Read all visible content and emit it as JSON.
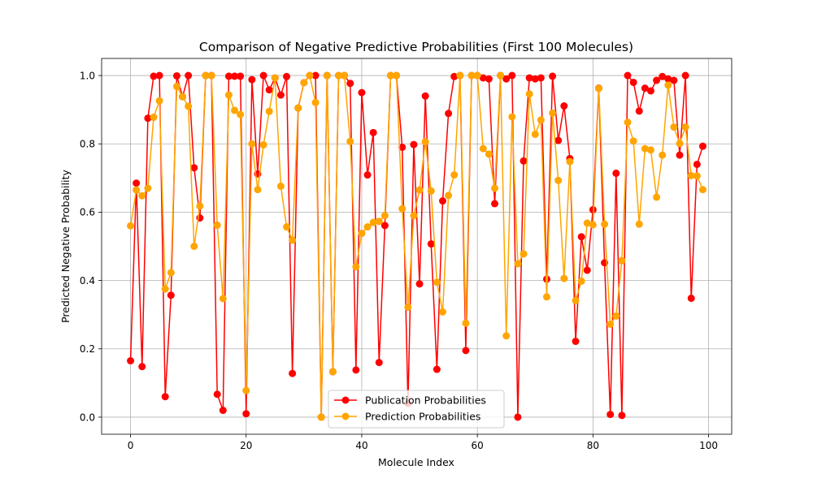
{
  "chart_data": {
    "type": "line",
    "title": "Comparison of Negative Predictive Probabilities (First 100 Molecules)",
    "xlabel": "Molecule Index",
    "ylabel": "Predicted Negative Probability",
    "xlim": [
      -5,
      104
    ],
    "ylim": [
      -0.05,
      1.05
    ],
    "xticks": [
      0,
      20,
      40,
      60,
      80,
      100
    ],
    "yticks": [
      0.0,
      0.2,
      0.4,
      0.6,
      0.8,
      1.0
    ],
    "grid": true,
    "legend_position": "bottom-center",
    "series": [
      {
        "name": "Publication Probabilities",
        "color": "#ff0000",
        "marker": "circle",
        "values": [
          0.165,
          0.685,
          0.148,
          0.875,
          0.998,
          1.0,
          0.06,
          0.357,
          0.999,
          0.938,
          1.0,
          0.73,
          0.583,
          1.0,
          1.0,
          0.067,
          0.02,
          0.998,
          0.998,
          0.998,
          0.01,
          0.988,
          0.712,
          1.0,
          0.958,
          0.993,
          0.943,
          0.997,
          0.128,
          0.905,
          0.979,
          1.0,
          1.0,
          0.0,
          1.0,
          0.133,
          1.0,
          1.0,
          0.977,
          0.138,
          0.95,
          0.709,
          0.833,
          0.16,
          0.561,
          1.0,
          1.0,
          0.79,
          0.04,
          0.798,
          0.39,
          0.94,
          0.507,
          0.14,
          0.633,
          0.889,
          0.997,
          1.0,
          0.195,
          1.0,
          1.0,
          0.993,
          0.99,
          0.625,
          1.0,
          0.99,
          1.0,
          0.0,
          0.75,
          0.993,
          0.99,
          0.993,
          0.404,
          0.998,
          0.81,
          0.911,
          0.757,
          0.222,
          0.528,
          0.43,
          0.607,
          0.963,
          0.452,
          0.008,
          0.714,
          0.005,
          1.0,
          0.98,
          0.896,
          0.963,
          0.955,
          0.986,
          0.997,
          0.99,
          0.986,
          0.767,
          1.0,
          0.348,
          0.74,
          0.793
        ]
      },
      {
        "name": "Prediction Probabilities",
        "color": "#ffa500",
        "marker": "circle",
        "values": [
          0.56,
          0.665,
          0.648,
          0.67,
          0.878,
          0.926,
          0.375,
          0.423,
          0.968,
          0.938,
          0.91,
          0.5,
          0.618,
          1.0,
          1.0,
          0.562,
          0.347,
          0.943,
          0.898,
          0.886,
          0.078,
          0.8,
          0.666,
          0.797,
          0.895,
          0.993,
          0.676,
          0.557,
          0.518,
          0.905,
          0.979,
          1.0,
          0.921,
          0.0,
          1.0,
          0.133,
          1.0,
          1.0,
          0.807,
          0.44,
          0.538,
          0.557,
          0.57,
          0.573,
          0.59,
          1.0,
          1.0,
          0.61,
          0.322,
          0.59,
          0.665,
          0.806,
          0.662,
          0.395,
          0.308,
          0.649,
          0.709,
          1.0,
          0.275,
          1.0,
          1.0,
          0.786,
          0.77,
          0.67,
          1.0,
          0.238,
          0.879,
          0.449,
          0.478,
          0.946,
          0.828,
          0.87,
          0.352,
          0.89,
          0.693,
          0.406,
          0.748,
          0.341,
          0.398,
          0.568,
          0.563,
          0.962,
          0.565,
          0.272,
          0.296,
          0.458,
          0.863,
          0.808,
          0.565,
          0.786,
          0.782,
          0.644,
          0.767,
          0.972,
          0.849,
          0.801,
          0.849,
          0.707,
          0.706,
          0.666
        ]
      }
    ]
  }
}
